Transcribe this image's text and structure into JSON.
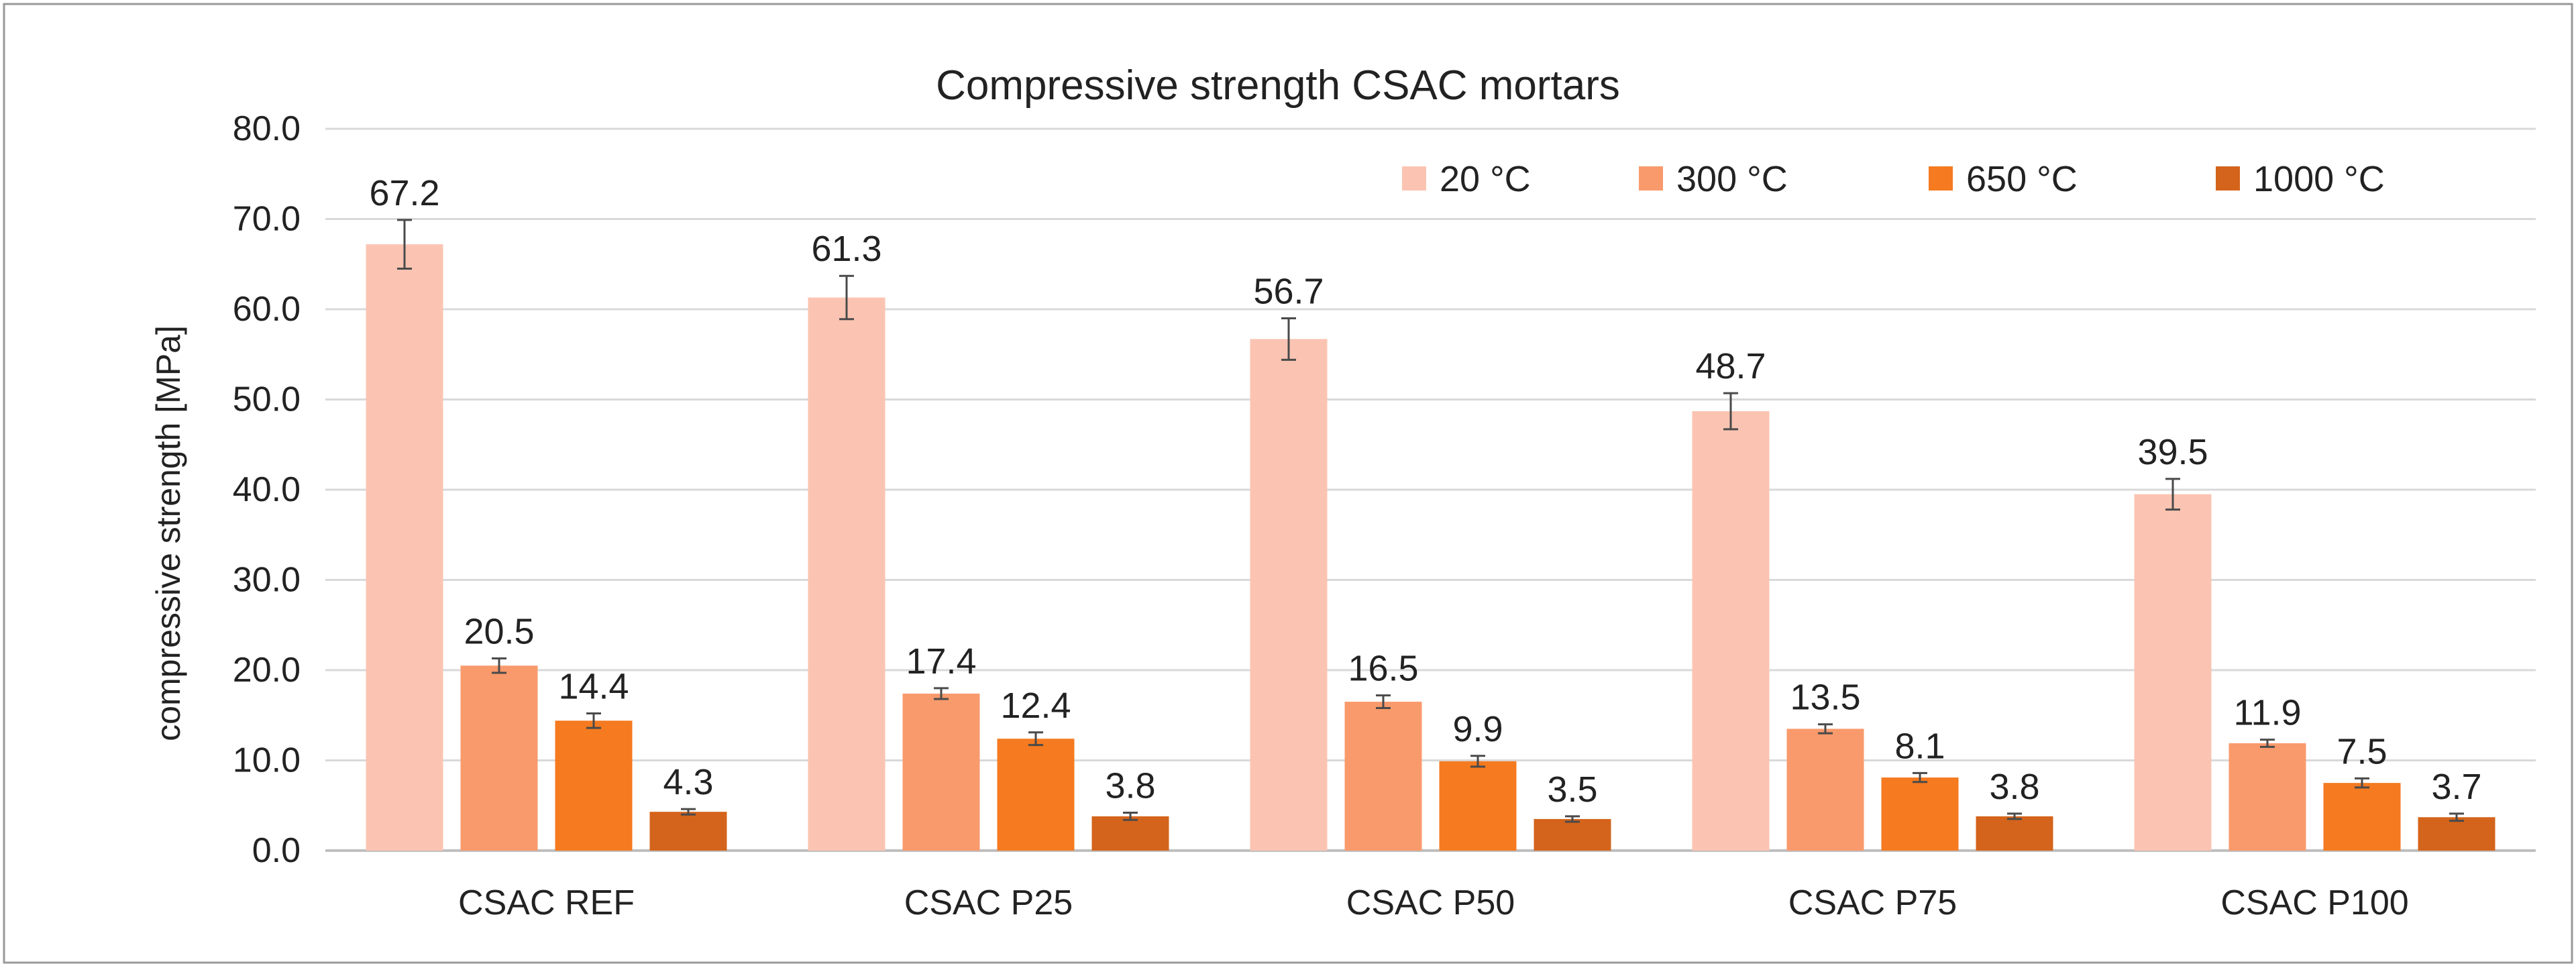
{
  "chart_data": {
    "type": "bar",
    "title": "Compressive strength CSAC mortars",
    "xlabel": "",
    "ylabel": "compressive strength [MPa]",
    "ylim": [
      0,
      80
    ],
    "yticks": [
      "0.0",
      "10.0",
      "20.0",
      "30.0",
      "40.0",
      "50.0",
      "60.0",
      "70.0",
      "80.0"
    ],
    "grid": true,
    "legend_position": "top-right",
    "categories": [
      "CSAC REF",
      "CSAC P25",
      "CSAC P50",
      "CSAC P75",
      "CSAC P100"
    ],
    "series": [
      {
        "name": "20 °C",
        "color": "#fbc4b2",
        "values": [
          67.2,
          61.3,
          56.7,
          48.7,
          39.5
        ],
        "labels": [
          "67.2",
          "61.3",
          "56.7",
          "48.7",
          "39.5"
        ],
        "errors": [
          2.7,
          2.4,
          2.3,
          2.0,
          1.7
        ]
      },
      {
        "name": "300 °C",
        "color": "#f99a6c",
        "values": [
          20.5,
          17.4,
          16.5,
          13.5,
          11.9
        ],
        "labels": [
          "20.5",
          "17.4",
          "16.5",
          "13.5",
          "11.9"
        ],
        "errors": [
          0.8,
          0.6,
          0.7,
          0.5,
          0.4
        ]
      },
      {
        "name": "650 °C",
        "color": "#f57a20",
        "values": [
          14.4,
          12.4,
          9.9,
          8.1,
          7.5
        ],
        "labels": [
          "14.4",
          "12.4",
          "9.9",
          "8.1",
          "7.5"
        ],
        "errors": [
          0.8,
          0.7,
          0.6,
          0.5,
          0.5
        ]
      },
      {
        "name": "1000 °C",
        "color": "#d4641b",
        "values": [
          4.3,
          3.8,
          3.5,
          3.8,
          3.7
        ],
        "labels": [
          "4.3",
          "3.8",
          "3.5",
          "3.8",
          "3.7"
        ],
        "errors": [
          0.3,
          0.4,
          0.3,
          0.3,
          0.4
        ]
      }
    ]
  }
}
